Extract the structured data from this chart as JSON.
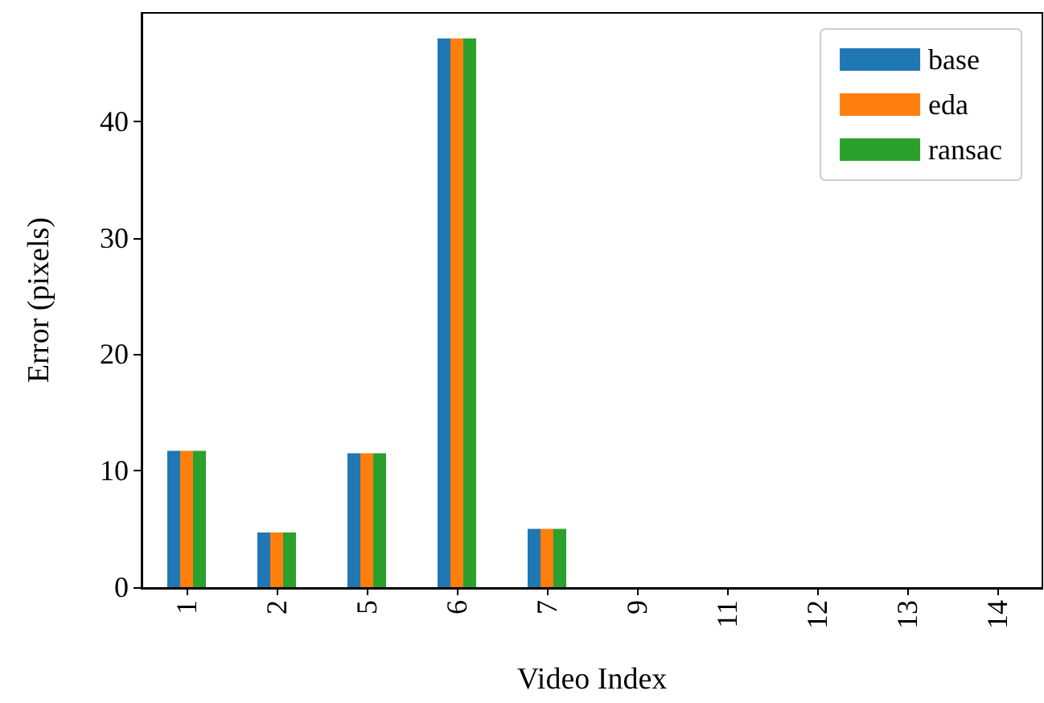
{
  "chart_data": {
    "type": "bar",
    "xlabel": "Video Index",
    "ylabel": "Error (pixels)",
    "categories": [
      "1",
      "2",
      "5",
      "6",
      "7",
      "9",
      "11",
      "12",
      "13",
      "14"
    ],
    "series": [
      {
        "name": "base",
        "color": "#1f77b4",
        "values": [
          11.7,
          4.7,
          11.5,
          47.1,
          5.0,
          0,
          0,
          0,
          0,
          0
        ]
      },
      {
        "name": "eda",
        "color": "#ff7f0e",
        "values": [
          11.7,
          4.7,
          11.5,
          47.1,
          5.0,
          0,
          0,
          0,
          0,
          0
        ]
      },
      {
        "name": "ransac",
        "color": "#2ca02c",
        "values": [
          11.7,
          4.7,
          11.5,
          47.1,
          5.0,
          0,
          0,
          0,
          0,
          0
        ]
      }
    ],
    "ylim": [
      0,
      49.3
    ],
    "yticks": [
      0,
      10,
      20,
      30,
      40
    ],
    "grid": false,
    "legend": "top right"
  }
}
